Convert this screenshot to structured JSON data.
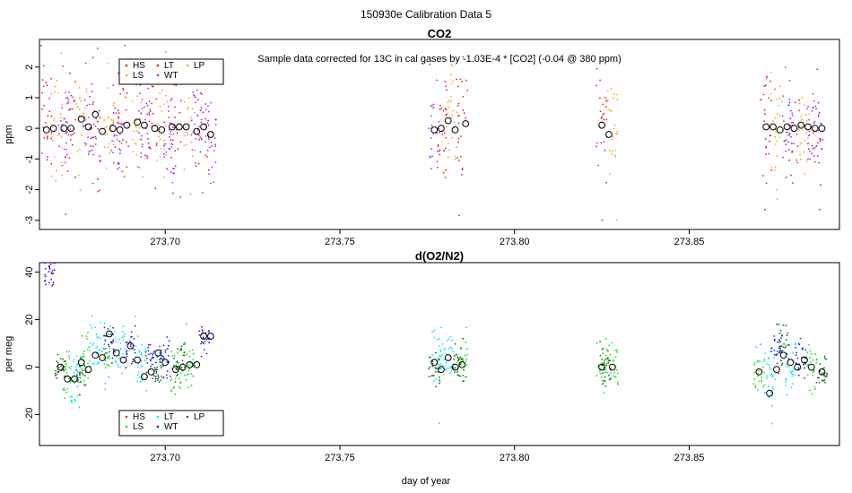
{
  "figure_title": "150930e   Calibration Data 5",
  "x_axis_label": "day of year",
  "chart_data": [
    {
      "type": "scatter",
      "title": "CO2",
      "ylabel": "ppm",
      "annotation": "Sample data corrected for 13C in cal gases by -1.03E-4 * [CO2] (-0.04 @ 380 ppm)",
      "xlim": [
        273.664,
        273.893
      ],
      "ylim": [
        -3.3,
        2.9
      ],
      "xticks": [
        "273.70",
        "273.75",
        "273.80",
        "273.85"
      ],
      "xtick_values": [
        273.7,
        273.75,
        273.8,
        273.85
      ],
      "yticks": [
        "-3",
        "-2",
        "-1",
        "0",
        "1",
        "2"
      ],
      "ytick_values": [
        -3,
        -2,
        -1,
        0,
        1,
        2
      ],
      "legend": {
        "placement": "top-left",
        "entries": [
          {
            "label": "HS",
            "color": "#e8202a"
          },
          {
            "label": "LT",
            "color": "#e8202a"
          },
          {
            "label": "LP",
            "color": "#f5a623"
          },
          {
            "label": "LS",
            "color": "#f5a623"
          },
          {
            "label": "WT",
            "color": "#9b30ff"
          }
        ]
      },
      "series": [
        {
          "name": "HS",
          "color": "#e8202a",
          "x": [
            273.666,
            273.673,
            273.68,
            273.688,
            273.696,
            273.703,
            273.711,
            273.779,
            273.785,
            273.825,
            273.872,
            273.88,
            273.887
          ],
          "y": [
            0.0,
            0.1,
            0.0,
            0.2,
            0.1,
            0.0,
            0.1,
            0.0,
            0.2,
            0.1,
            0.1,
            0.1,
            0.0
          ],
          "spread": 1.1
        },
        {
          "name": "LP",
          "color": "#f5a623",
          "x": [
            273.669,
            273.676,
            273.684,
            273.692,
            273.699,
            273.707,
            273.782,
            273.828,
            273.875,
            273.883
          ],
          "y": [
            0.0,
            0.1,
            0.0,
            0.1,
            0.0,
            0.1,
            0.0,
            -0.1,
            0.0,
            0.0
          ],
          "spread": 0.9
        },
        {
          "name": "WT",
          "color": "#9b30ff",
          "x": [
            273.671,
            273.678,
            273.686,
            273.694,
            273.701,
            273.709,
            273.713,
            273.777,
            273.878,
            273.885
          ],
          "y": [
            0.0,
            0.1,
            -0.1,
            0.2,
            -0.1,
            0.0,
            -0.2,
            -0.1,
            0.0,
            0.1
          ],
          "spread": 0.8
        }
      ],
      "means": {
        "x": [
          273.666,
          273.668,
          273.671,
          273.673,
          273.676,
          273.678,
          273.68,
          273.682,
          273.685,
          273.687,
          273.689,
          273.692,
          273.694,
          273.697,
          273.699,
          273.702,
          273.704,
          273.706,
          273.709,
          273.711,
          273.713,
          273.777,
          273.779,
          273.781,
          273.783,
          273.786,
          273.825,
          273.827,
          273.872,
          273.874,
          273.876,
          273.878,
          273.88,
          273.882,
          273.884,
          273.886,
          273.888
        ],
        "y": [
          -0.05,
          0.0,
          0.0,
          0.0,
          0.3,
          0.05,
          0.45,
          -0.1,
          0.0,
          -0.05,
          0.1,
          0.2,
          0.1,
          0.0,
          -0.05,
          0.05,
          0.05,
          0.05,
          -0.1,
          0.05,
          -0.2,
          -0.05,
          0.0,
          0.25,
          -0.05,
          0.15,
          0.1,
          -0.2,
          0.05,
          0.05,
          -0.05,
          0.05,
          0.0,
          0.1,
          0.05,
          0.0,
          0.0
        ]
      }
    },
    {
      "type": "scatter",
      "title": "d(O2/N2)",
      "ylabel": "per meg",
      "xlim": [
        273.664,
        273.893
      ],
      "ylim": [
        -33,
        44
      ],
      "xticks": [
        "273.70",
        "273.75",
        "273.80",
        "273.85"
      ],
      "xtick_values": [
        273.7,
        273.75,
        273.8,
        273.85
      ],
      "yticks": [
        "-20",
        "0",
        "20",
        "40"
      ],
      "ytick_values": [
        -20,
        0,
        20,
        40
      ],
      "legend": {
        "placement": "bottom-left",
        "entries": [
          {
            "label": "HS",
            "color": "#e8202a"
          },
          {
            "label": "LT",
            "color": "#00e5ff"
          },
          {
            "label": "LP",
            "color": "#1a7a1a"
          },
          {
            "label": "LS",
            "color": "#22dd22"
          },
          {
            "label": "WT",
            "color": "#0b2f6b"
          }
        ]
      },
      "series": [
        {
          "name": "HS",
          "color": "#1f1fd8",
          "x": [
            273.667,
            273.684,
            273.69,
            273.696,
            273.7,
            273.711,
            273.875,
            273.882
          ],
          "y": [
            38,
            10,
            5,
            3,
            3,
            13,
            8,
            3
          ],
          "spread": 4
        },
        {
          "name": "LT",
          "color": "#00e5ff",
          "x": [
            273.674,
            273.68,
            273.687,
            273.693,
            273.778,
            273.781,
            273.873,
            273.879
          ],
          "y": [
            -5,
            10,
            5,
            4,
            3,
            5,
            -5,
            0
          ],
          "spread": 6
        },
        {
          "name": "LS",
          "color": "#22dd22",
          "x": [
            273.672,
            273.677,
            273.683,
            273.703,
            273.707,
            273.785,
            273.825,
            273.828,
            273.87,
            273.885
          ],
          "y": [
            -5,
            3,
            4,
            -1,
            2,
            1,
            0,
            1,
            -2,
            0
          ],
          "spread": 5
        },
        {
          "name": "WT",
          "color": "#1a6b1a",
          "x": [
            273.67,
            273.676,
            273.698,
            273.704,
            273.777,
            273.784,
            273.826,
            273.877,
            273.888
          ],
          "y": [
            0,
            -3,
            -1,
            1,
            0,
            1,
            0,
            10,
            -2
          ],
          "spread": 4
        }
      ],
      "means": {
        "x": [
          273.67,
          273.672,
          273.674,
          273.676,
          273.678,
          273.68,
          273.682,
          273.684,
          273.686,
          273.688,
          273.69,
          273.692,
          273.694,
          273.696,
          273.698,
          273.7,
          273.703,
          273.705,
          273.707,
          273.709,
          273.711,
          273.713,
          273.777,
          273.779,
          273.781,
          273.783,
          273.785,
          273.825,
          273.828,
          273.87,
          273.873,
          273.875,
          273.877,
          273.879,
          273.881,
          273.883,
          273.885,
          273.888
        ],
        "y": [
          0,
          -5,
          -5,
          2,
          -1,
          5,
          4,
          14,
          6,
          3,
          9,
          3,
          -4,
          -2,
          6,
          2,
          -1,
          0,
          1,
          1,
          13,
          13,
          2,
          -1,
          4,
          0,
          1,
          0,
          0,
          -2,
          -11,
          -1,
          5,
          2,
          0,
          3,
          0,
          -2
        ]
      }
    }
  ]
}
